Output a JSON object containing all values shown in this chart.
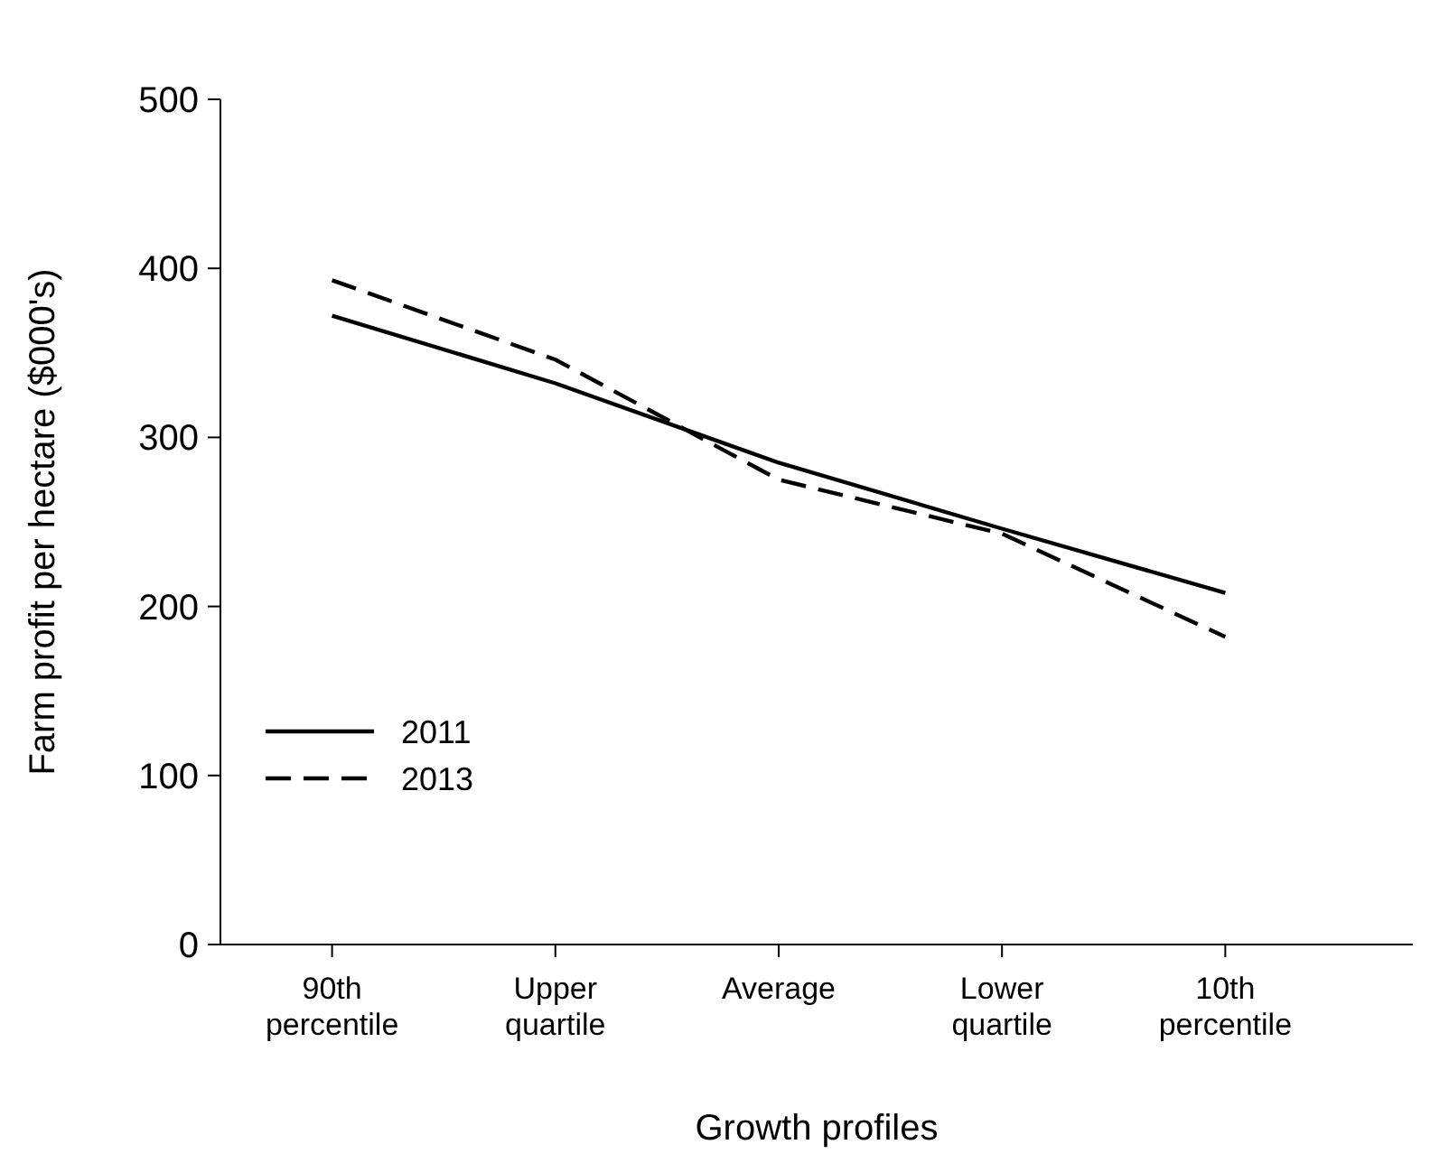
{
  "chart_data": {
    "type": "line",
    "xlabel": "Growth profiles",
    "ylabel": "Farm profit per hectare ($000's)",
    "categories": [
      "90th\npercentile",
      "Upper\nquartile",
      "Average",
      "Lower\nquartile",
      "10th\npercentile"
    ],
    "series": [
      {
        "name": "2011",
        "color": "#000000",
        "line_style": "solid",
        "values": [
          372,
          332,
          285,
          246,
          208
        ]
      },
      {
        "name": "2013",
        "color": "#000000",
        "line_style": "dashed",
        "values": [
          393,
          346,
          275,
          243,
          182
        ]
      }
    ],
    "ylim": [
      0,
      500
    ],
    "yticks": [
      0,
      100,
      200,
      300,
      400,
      500
    ],
    "grid": false,
    "marker": "none",
    "legend": "bottom left"
  }
}
